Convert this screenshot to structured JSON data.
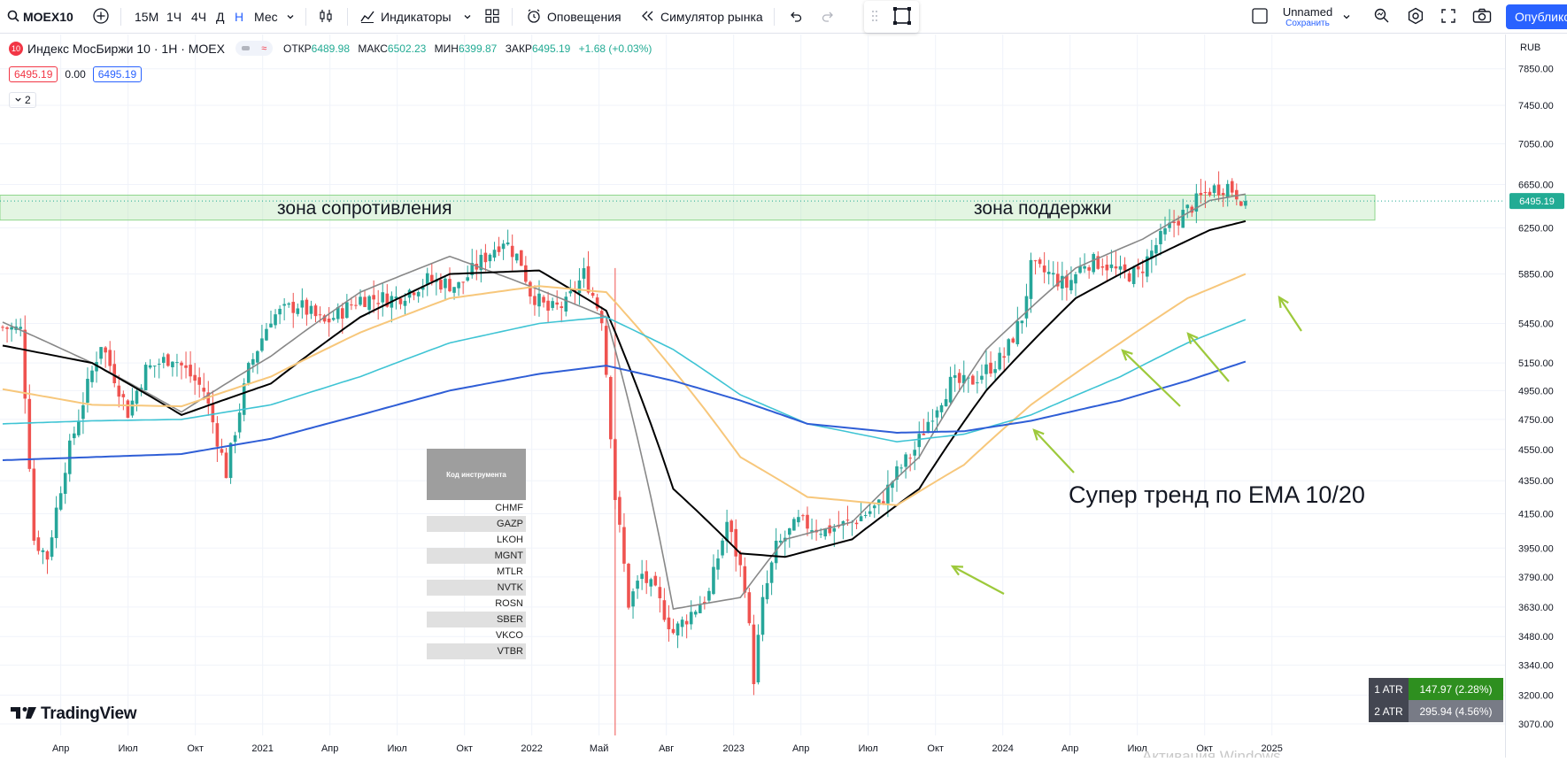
{
  "toolbar": {
    "symbol": "MOEX10",
    "intervals": [
      "15М",
      "1Ч",
      "4Ч",
      "Д",
      "Н",
      "Мес"
    ],
    "active_interval": "Н",
    "indicators_label": "Индикаторы",
    "alerts_label": "Оповещения",
    "replay_label": "Симулятор рынка",
    "layout_name": "Unnamed",
    "save_label": "Сохранить",
    "publish_label": "Опубликс"
  },
  "legend": {
    "badge": "10",
    "title": "Индекс МосБиржи 10 · 1Н · MOEX",
    "ohlc": [
      {
        "label": "ОТКР",
        "value": "6489.98"
      },
      {
        "label": "МАКС",
        "value": "6502.23"
      },
      {
        "label": "МИН",
        "value": "6399.87"
      },
      {
        "label": "ЗАКР",
        "value": "6495.19"
      }
    ],
    "change": "+1.68 (+0.03%)",
    "bid": "6495.19",
    "spread": "0.00",
    "ask": "6495.19",
    "indicators_collapsed": "2"
  },
  "currency": "RUB",
  "last_price": "6495.19",
  "annotations": {
    "resistance": "зона сопротивления",
    "support": "зона  поддержки",
    "trend": "Супер тренд по EMA 10/20"
  },
  "ticker_table": {
    "header": "Код инструмента",
    "rows": [
      "CHMF",
      "GAZP",
      "LKOH",
      "MGNT",
      "MTLR",
      "NVTK",
      "ROSN",
      "SBER",
      "VKCO",
      "VTBR"
    ]
  },
  "atr": [
    {
      "label": "1 ATR",
      "value": "147.97 (2.28%)",
      "color": "#2e8f1f"
    },
    {
      "label": "2 ATR",
      "value": "295.94 (4.56%)",
      "color": "#787b86"
    }
  ],
  "brand": "TradingView",
  "watermark": "Активация Windows",
  "colors": {
    "up": "#26a69a",
    "down": "#ef5350",
    "ema10": "#888888",
    "ema20": "#000000",
    "ema50": "#f7c77b",
    "ema100": "#3fc4d4",
    "ema200": "#2f5ed6",
    "zone": "#8fd68c",
    "arrows": "#9dc93b"
  },
  "chart_data": {
    "type": "candlestick",
    "timeframe": "1W",
    "x_ticks": [
      "Апр",
      "Июл",
      "Окт",
      "2021",
      "Апр",
      "Июл",
      "Окт",
      "2022",
      "Май",
      "Авг",
      "2023",
      "Апр",
      "Июл",
      "Окт",
      "2024",
      "Апр",
      "Июл",
      "Окт",
      "2025"
    ],
    "y_ticks": [
      7850,
      7450,
      7050,
      6650,
      6250,
      5850,
      5450,
      5150,
      4950,
      4750,
      4550,
      4350,
      4150,
      3950,
      3790,
      3630,
      3480,
      3340,
      3200,
      3070
    ],
    "y_scale": "log",
    "ylim": [
      3020,
      8100
    ],
    "series": [
      {
        "name": "EMA 10",
        "anchors": [
          [
            0,
            5460
          ],
          [
            20,
            5150
          ],
          [
            40,
            4800
          ],
          [
            60,
            5200
          ],
          [
            80,
            5700
          ],
          [
            100,
            6000
          ],
          [
            120,
            5720
          ],
          [
            135,
            5500
          ],
          [
            150,
            3620
          ],
          [
            165,
            3680
          ],
          [
            175,
            4000
          ],
          [
            190,
            4100
          ],
          [
            205,
            4500
          ],
          [
            220,
            5250
          ],
          [
            240,
            5900
          ],
          [
            255,
            6150
          ],
          [
            270,
            6500
          ],
          [
            278,
            6560
          ]
        ]
      },
      {
        "name": "EMA 20",
        "anchors": [
          [
            0,
            5280
          ],
          [
            20,
            5150
          ],
          [
            40,
            4780
          ],
          [
            60,
            5000
          ],
          [
            80,
            5500
          ],
          [
            100,
            5850
          ],
          [
            120,
            5880
          ],
          [
            135,
            5550
          ],
          [
            150,
            4300
          ],
          [
            165,
            3920
          ],
          [
            175,
            3900
          ],
          [
            190,
            4000
          ],
          [
            205,
            4300
          ],
          [
            220,
            4950
          ],
          [
            240,
            5650
          ],
          [
            255,
            5950
          ],
          [
            270,
            6230
          ],
          [
            278,
            6310
          ]
        ]
      },
      {
        "name": "EMA 50",
        "anchors": [
          [
            0,
            4960
          ],
          [
            20,
            4850
          ],
          [
            40,
            4840
          ],
          [
            60,
            5050
          ],
          [
            80,
            5380
          ],
          [
            100,
            5650
          ],
          [
            120,
            5750
          ],
          [
            135,
            5700
          ],
          [
            150,
            5100
          ],
          [
            165,
            4500
          ],
          [
            180,
            4250
          ],
          [
            200,
            4200
          ],
          [
            215,
            4450
          ],
          [
            230,
            4850
          ],
          [
            250,
            5300
          ],
          [
            265,
            5650
          ],
          [
            278,
            5850
          ]
        ]
      },
      {
        "name": "EMA 100",
        "anchors": [
          [
            0,
            4720
          ],
          [
            20,
            4740
          ],
          [
            40,
            4750
          ],
          [
            60,
            4850
          ],
          [
            80,
            5050
          ],
          [
            100,
            5300
          ],
          [
            120,
            5450
          ],
          [
            135,
            5500
          ],
          [
            150,
            5250
          ],
          [
            165,
            4920
          ],
          [
            180,
            4720
          ],
          [
            200,
            4600
          ],
          [
            215,
            4650
          ],
          [
            230,
            4780
          ],
          [
            250,
            5050
          ],
          [
            265,
            5300
          ],
          [
            278,
            5480
          ]
        ]
      },
      {
        "name": "EMA 200",
        "anchors": [
          [
            0,
            4480
          ],
          [
            20,
            4500
          ],
          [
            40,
            4520
          ],
          [
            60,
            4620
          ],
          [
            80,
            4780
          ],
          [
            100,
            4950
          ],
          [
            120,
            5070
          ],
          [
            135,
            5130
          ],
          [
            150,
            5020
          ],
          [
            165,
            4880
          ],
          [
            180,
            4720
          ],
          [
            200,
            4660
          ],
          [
            215,
            4670
          ],
          [
            230,
            4740
          ],
          [
            250,
            4880
          ],
          [
            265,
            5020
          ],
          [
            278,
            5160
          ]
        ]
      }
    ],
    "price_path": [
      [
        0,
        5420
      ],
      [
        4,
        5400
      ],
      [
        7,
        4000
      ],
      [
        10,
        3900
      ],
      [
        14,
        4450
      ],
      [
        22,
        5300
      ],
      [
        28,
        4800
      ],
      [
        32,
        5100
      ],
      [
        38,
        5200
      ],
      [
        45,
        4950
      ],
      [
        50,
        4400
      ],
      [
        55,
        5100
      ],
      [
        60,
        5500
      ],
      [
        66,
        5600
      ],
      [
        72,
        5450
      ],
      [
        80,
        5650
      ],
      [
        88,
        5650
      ],
      [
        95,
        5800
      ],
      [
        102,
        5750
      ],
      [
        108,
        6000
      ],
      [
        112,
        6150
      ],
      [
        116,
        5950
      ],
      [
        118,
        5700
      ],
      [
        122,
        5550
      ],
      [
        126,
        5600
      ],
      [
        130,
        5850
      ],
      [
        134,
        5500
      ],
      [
        137,
        4250
      ],
      [
        140,
        3650
      ],
      [
        143,
        3800
      ],
      [
        146,
        3700
      ],
      [
        150,
        3500
      ],
      [
        154,
        3600
      ],
      [
        158,
        3700
      ],
      [
        162,
        4100
      ],
      [
        166,
        3750
      ],
      [
        168,
        3280
      ],
      [
        170,
        3650
      ],
      [
        173,
        3950
      ],
      [
        178,
        4100
      ],
      [
        184,
        4050
      ],
      [
        190,
        4100
      ],
      [
        196,
        4200
      ],
      [
        200,
        4400
      ],
      [
        204,
        4550
      ],
      [
        208,
        4800
      ],
      [
        212,
        5000
      ],
      [
        216,
        5000
      ],
      [
        220,
        5100
      ],
      [
        224,
        5200
      ],
      [
        228,
        5500
      ],
      [
        230,
        5900
      ],
      [
        234,
        5850
      ],
      [
        238,
        5750
      ],
      [
        242,
        5950
      ],
      [
        246,
        5950
      ],
      [
        250,
        5850
      ],
      [
        254,
        5850
      ],
      [
        258,
        6100
      ],
      [
        262,
        6300
      ],
      [
        266,
        6450
      ],
      [
        270,
        6600
      ],
      [
        274,
        6640
      ],
      [
        278,
        6495
      ]
    ],
    "resistance_support_zone": [
      6320,
      6550
    ],
    "last": 6495.19
  }
}
